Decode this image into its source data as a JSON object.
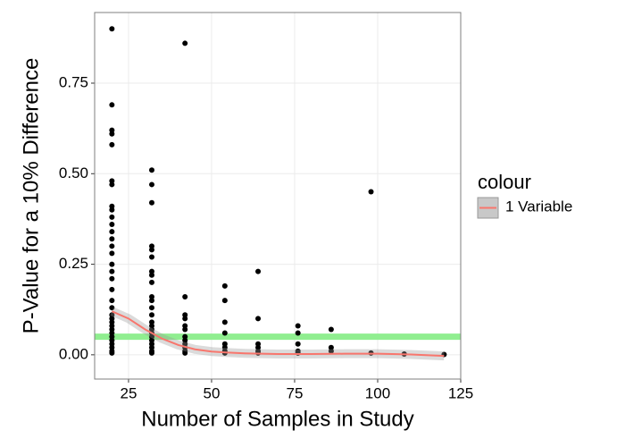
{
  "chart_data": {
    "type": "scatter",
    "xlabel": "Number of Samples in Study",
    "ylabel": "P-Value for a 10% Difference",
    "x": [
      20,
      20,
      20,
      20,
      20,
      20,
      20,
      20,
      20,
      20,
      20,
      20,
      20,
      20,
      20,
      20,
      20,
      20,
      20,
      20,
      20,
      20,
      20,
      20,
      20,
      20,
      20,
      20,
      20,
      20,
      20,
      20,
      20,
      32,
      32,
      32,
      32,
      32,
      32,
      32,
      32,
      32,
      32,
      32,
      32,
      32,
      32,
      32,
      32,
      32,
      32,
      32,
      32,
      32,
      32,
      32,
      42,
      42,
      42,
      42,
      42,
      42,
      42,
      42,
      42,
      42,
      42,
      42,
      54,
      54,
      54,
      54,
      54,
      54,
      54,
      54,
      64,
      64,
      64,
      64,
      64,
      64,
      76,
      76,
      76,
      76,
      76,
      86,
      86,
      86,
      98,
      98,
      108,
      120
    ],
    "values": [
      0.9,
      0.69,
      0.62,
      0.61,
      0.58,
      0.48,
      0.47,
      0.41,
      0.4,
      0.38,
      0.36,
      0.34,
      0.32,
      0.3,
      0.28,
      0.25,
      0.23,
      0.21,
      0.18,
      0.15,
      0.13,
      0.11,
      0.1,
      0.09,
      0.08,
      0.07,
      0.06,
      0.05,
      0.04,
      0.03,
      0.02,
      0.01,
      0.005,
      0.51,
      0.47,
      0.42,
      0.3,
      0.29,
      0.27,
      0.23,
      0.22,
      0.2,
      0.16,
      0.15,
      0.13,
      0.11,
      0.09,
      0.08,
      0.07,
      0.06,
      0.05,
      0.04,
      0.03,
      0.02,
      0.01,
      0.005,
      0.86,
      0.16,
      0.11,
      0.1,
      0.08,
      0.07,
      0.05,
      0.04,
      0.03,
      0.02,
      0.01,
      0.005,
      0.19,
      0.15,
      0.09,
      0.06,
      0.03,
      0.02,
      0.01,
      0.005,
      0.23,
      0.1,
      0.03,
      0.02,
      0.01,
      0.005,
      0.08,
      0.06,
      0.03,
      0.01,
      0.005,
      0.07,
      0.02,
      0.01,
      0.45,
      0.005,
      0.002,
      0.001
    ],
    "color": "#000000",
    "smooth": {
      "name": "1 Variable",
      "color": "#f8766d",
      "x": [
        20,
        25,
        30,
        35,
        40,
        45,
        50,
        55,
        60,
        70,
        80,
        90,
        100,
        110,
        120
      ],
      "values": [
        0.12,
        0.1,
        0.07,
        0.045,
        0.027,
        0.015,
        0.009,
        0.006,
        0.004,
        0.002,
        0.002,
        0.003,
        0.003,
        0.001,
        -0.003
      ]
    },
    "hline": {
      "value": 0.05,
      "color": "#90ee90"
    },
    "legend_title": "colour",
    "xlim": [
      14.8,
      125
    ],
    "ylim": [
      -0.067,
      0.945
    ],
    "xticks": [
      25,
      50,
      75,
      100,
      125
    ],
    "yticks": [
      {
        "value": 0,
        "label": "0.00"
      },
      {
        "value": 0.25,
        "label": "0.25"
      },
      {
        "value": 0.5,
        "label": "0.50"
      },
      {
        "value": 0.75,
        "label": "0.75"
      }
    ],
    "grid": true
  }
}
